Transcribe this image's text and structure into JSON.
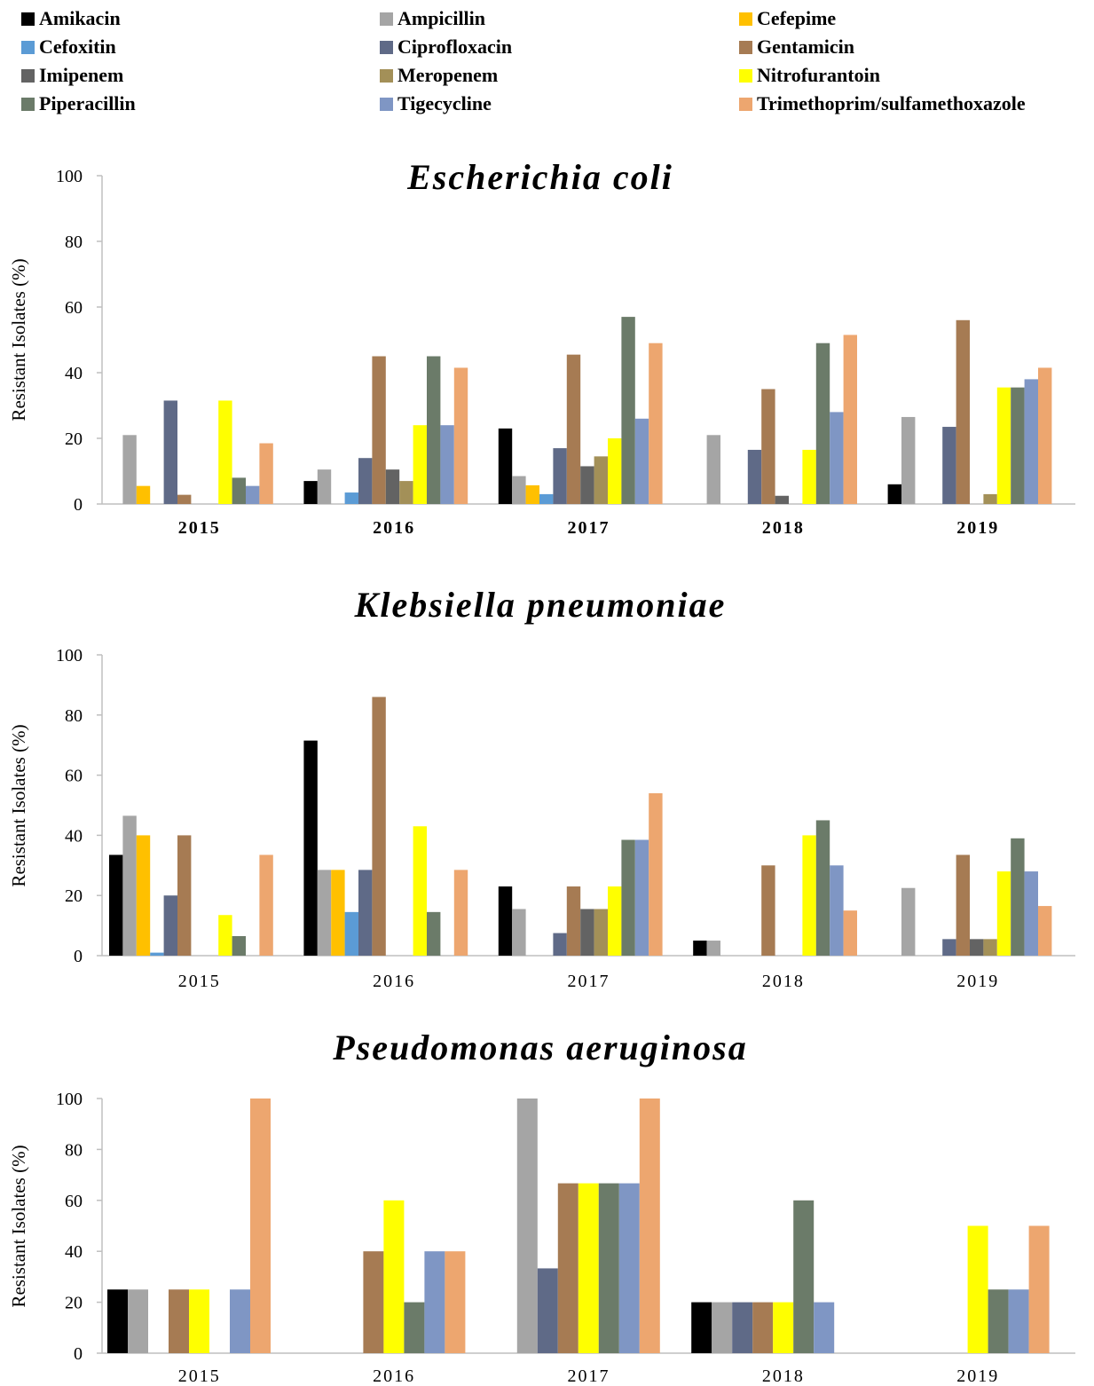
{
  "legend": [
    {
      "name": "Amikacin",
      "color": "#000000"
    },
    {
      "name": "Ampicillin",
      "color": "#a5a5a5"
    },
    {
      "name": "Cefepime",
      "color": "#ffc000"
    },
    {
      "name": "Cefoxitin",
      "color": "#5b9bd5"
    },
    {
      "name": "Ciprofloxacin",
      "color": "#5f6a87"
    },
    {
      "name": "Gentamicin",
      "color": "#a67b53"
    },
    {
      "name": "Imipenem",
      "color": "#636363"
    },
    {
      "name": "Meropenem",
      "color": "#a39058"
    },
    {
      "name": "Nitrofurantoin",
      "color": "#ffff00"
    },
    {
      "name": "Piperacillin",
      "color": "#6b7b69"
    },
    {
      "name": "Tigecycline",
      "color": "#7f96c4"
    },
    {
      "name": "Trimethoprim/sulfamethoxazole",
      "color": "#eda66f"
    }
  ],
  "chart_data": [
    {
      "type": "bar",
      "title": "Escherichia coli",
      "ylabel": "Resistant Isolates (%)",
      "ylim": [
        0,
        100
      ],
      "yticks": [
        0,
        20,
        40,
        60,
        80,
        100
      ],
      "categories": [
        "2015",
        "2016",
        "2017",
        "2018",
        "2019"
      ],
      "category_labels_bold": true,
      "series": [
        {
          "name": "Amikacin",
          "values": [
            0,
            7,
            23,
            0,
            6
          ]
        },
        {
          "name": "Ampicillin",
          "values": [
            21,
            10.5,
            8.5,
            21,
            26.5
          ]
        },
        {
          "name": "Cefepime",
          "values": [
            5.5,
            0,
            5.7,
            0,
            0
          ]
        },
        {
          "name": "Cefoxitin",
          "values": [
            0,
            3.5,
            3,
            0,
            0
          ]
        },
        {
          "name": "Ciprofloxacin",
          "values": [
            31.5,
            14,
            17,
            16.5,
            23.5
          ]
        },
        {
          "name": "Gentamicin",
          "values": [
            2.8,
            45,
            45.5,
            35,
            56
          ]
        },
        {
          "name": "Imipenem",
          "values": [
            0,
            10.5,
            11.5,
            2.5,
            0
          ]
        },
        {
          "name": "Meropenem",
          "values": [
            0,
            7,
            14.5,
            0,
            3
          ]
        },
        {
          "name": "Nitrofurantoin",
          "values": [
            31.5,
            24,
            20,
            16.5,
            35.5
          ]
        },
        {
          "name": "Piperacillin",
          "values": [
            8,
            45,
            57,
            49,
            35.5
          ]
        },
        {
          "name": "Tigecycline",
          "values": [
            5.5,
            24,
            26,
            28,
            38
          ]
        },
        {
          "name": "Trimethoprim/sulfamethoxazole",
          "values": [
            18.5,
            41.5,
            49,
            51.5,
            41.5
          ]
        }
      ]
    },
    {
      "type": "bar",
      "title": "Klebsiella pneumoniae",
      "ylabel": "Resistant Isolates (%)",
      "ylim": [
        0,
        100
      ],
      "yticks": [
        0,
        20,
        40,
        60,
        80,
        100
      ],
      "categories": [
        "2015",
        "2016",
        "2017",
        "2018",
        "2019"
      ],
      "category_labels_bold": false,
      "series": [
        {
          "name": "Amikacin",
          "values": [
            33.5,
            71.5,
            23,
            5,
            0
          ]
        },
        {
          "name": "Ampicillin",
          "values": [
            46.5,
            28.5,
            15.5,
            5,
            22.5
          ]
        },
        {
          "name": "Cefepime",
          "values": [
            40,
            28.5,
            0,
            0,
            0
          ]
        },
        {
          "name": "Cefoxitin",
          "values": [
            1,
            14.5,
            0,
            0,
            0
          ]
        },
        {
          "name": "Ciprofloxacin",
          "values": [
            20,
            28.5,
            7.5,
            0,
            5.5
          ]
        },
        {
          "name": "Gentamicin",
          "values": [
            40,
            86,
            23,
            30,
            33.5
          ]
        },
        {
          "name": "Imipenem",
          "values": [
            0,
            0,
            15.5,
            0,
            5.5
          ]
        },
        {
          "name": "Meropenem",
          "values": [
            0,
            0,
            15.5,
            0,
            5.5
          ]
        },
        {
          "name": "Nitrofurantoin",
          "values": [
            13.5,
            43,
            23,
            40,
            28
          ]
        },
        {
          "name": "Piperacillin",
          "values": [
            6.5,
            14.5,
            38.5,
            45,
            39
          ]
        },
        {
          "name": "Tigecycline",
          "values": [
            0,
            0,
            38.5,
            30,
            28
          ]
        },
        {
          "name": "Trimethoprim/sulfamethoxazole",
          "values": [
            33.5,
            28.5,
            54,
            15,
            16.5
          ]
        }
      ]
    },
    {
      "type": "bar",
      "title": "Pseudomonas aeruginosa",
      "ylabel": "Resistant Isolates (%)",
      "ylim": [
        0,
        100
      ],
      "yticks": [
        0,
        20,
        40,
        60,
        80,
        100
      ],
      "categories": [
        "2015",
        "2016",
        "2017",
        "2018",
        "2019"
      ],
      "category_labels_bold": false,
      "series": [
        {
          "name": "Amikacin",
          "values": [
            25,
            0,
            0,
            20,
            0
          ]
        },
        {
          "name": "Ampicillin",
          "values": [
            25,
            0,
            100,
            20,
            0
          ]
        },
        {
          "name": "Ciprofloxacin",
          "values": [
            0,
            0,
            33.3,
            20,
            0
          ]
        },
        {
          "name": "Gentamicin",
          "values": [
            25,
            40,
            66.7,
            20,
            0
          ]
        },
        {
          "name": "Nitrofurantoin",
          "values": [
            25,
            60,
            66.7,
            20,
            50
          ]
        },
        {
          "name": "Piperacillin",
          "values": [
            0,
            20,
            66.7,
            60,
            25
          ]
        },
        {
          "name": "Tigecycline",
          "values": [
            25,
            40,
            66.7,
            20,
            25
          ]
        },
        {
          "name": "Trimethoprim/sulfamethoxazole",
          "values": [
            100,
            40,
            100,
            0,
            50
          ]
        }
      ]
    }
  ]
}
